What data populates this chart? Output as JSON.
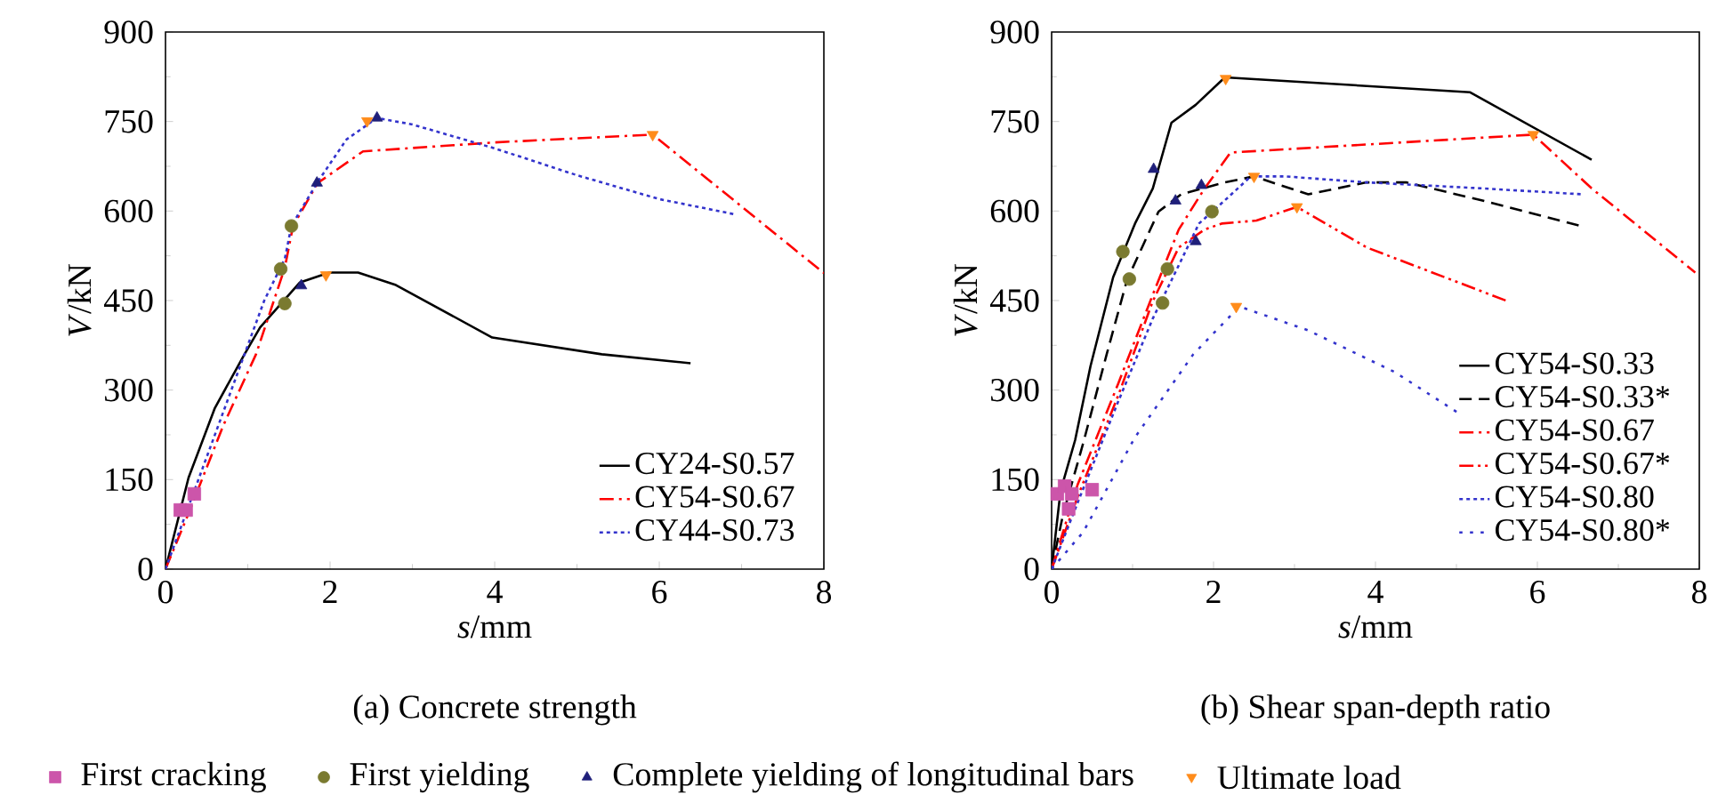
{
  "chart_data": [
    {
      "type": "line",
      "title": "(a) Concrete strength",
      "xlabel": "*s*/mm",
      "ylabel": "*V*/kN",
      "xlim": [
        0,
        8
      ],
      "ylim": [
        0,
        900
      ],
      "xticks": [
        0,
        2,
        4,
        6,
        8
      ],
      "yticks": [
        0,
        150,
        300,
        450,
        600,
        750,
        900
      ],
      "legend": "bottom right",
      "series": [
        {
          "name": "CY24-S0.57",
          "color": "#000000",
          "line_style": "solid",
          "x": [
            0,
            0.28,
            0.6,
            0.96,
            1.15,
            1.63,
            1.99,
            2.34,
            2.8,
            3.97,
            5.3,
            6.38
          ],
          "values": [
            0,
            153,
            270,
            360,
            405,
            480,
            497,
            497,
            476,
            388,
            360,
            345
          ]
        },
        {
          "name": "CY54-S0.67",
          "color": "#ff0000",
          "line_style": "dashdot",
          "x": [
            0,
            0.3,
            0.7,
            1.1,
            1.45,
            1.55,
            1.85,
            2.4,
            4,
            5.92,
            8
          ],
          "values": [
            0,
            100,
            240,
            360,
            505,
            575,
            647,
            700,
            715,
            728,
            496
          ]
        },
        {
          "name": "CY44-S0.73",
          "color": "#3333cc",
          "line_style": "dotted",
          "x": [
            0,
            0.4,
            0.8,
            1.2,
            1.45,
            1.53,
            1.84,
            2.2,
            2.57,
            3,
            4,
            5,
            6,
            6.9
          ],
          "values": [
            0,
            150,
            300,
            450,
            520,
            575,
            647,
            720,
            756,
            745,
            705,
            660,
            620,
            595
          ]
        },
        {
          "name": "First cracking",
          "type": "scatter",
          "marker": "square",
          "color": "#cc55aa",
          "x": [
            0.18,
            0.25,
            0.35
          ],
          "values": [
            99,
            99,
            126
          ]
        },
        {
          "name": "First yielding",
          "type": "scatter",
          "marker": "circle",
          "color": "#7a7a30",
          "x": [
            1.4,
            1.45,
            1.53
          ],
          "values": [
            503,
            445,
            575
          ]
        },
        {
          "name": "Complete yielding of  longitudinal bars",
          "type": "scatter",
          "marker": "triangle",
          "color": "#1f1f7a",
          "x": [
            1.65,
            1.84,
            2.57
          ],
          "values": [
            475,
            647,
            756
          ]
        },
        {
          "name": "Ultimate load",
          "type": "scatter",
          "marker": "triangle down",
          "color": "#ff8c1a",
          "x": [
            1.95,
            2.45,
            5.92
          ],
          "values": [
            493,
            751,
            728
          ]
        }
      ]
    },
    {
      "type": "line",
      "title": "(b) Shear span-depth ratio",
      "xlabel": "*s*/mm",
      "ylabel": "*V*/kN",
      "xlim": [
        0,
        8
      ],
      "ylim": [
        0,
        900
      ],
      "xticks": [
        0,
        2,
        4,
        6,
        8
      ],
      "yticks": [
        0,
        150,
        300,
        450,
        600,
        750,
        900
      ],
      "legend": "bottom right",
      "series": [
        {
          "name": "CY54-S0.33",
          "color": "#000000",
          "line_style": "solid",
          "x": [
            0,
            0.11,
            0.29,
            0.48,
            0.76,
            1.03,
            1.25,
            1.48,
            1.78,
            2.14,
            5.17,
            6.67
          ],
          "values": [
            0,
            131,
            216,
            340,
            489,
            579,
            638,
            748,
            778,
            824,
            799,
            686
          ]
        },
        {
          "name": "CY54-S0.33*",
          "color": "#000000",
          "line_style": "dashed",
          "x": [
            0,
            0.14,
            0.39,
            0.68,
            0.93,
            1.32,
            1.6,
            2.14,
            2.5,
            3.17,
            3.89,
            4.38,
            5.31,
            6.56
          ],
          "values": [
            0,
            91,
            211,
            360,
            484,
            599,
            628,
            648,
            658,
            628,
            648,
            648,
            618,
            574
          ]
        },
        {
          "name": "CY54-S0.67",
          "color": "#ff0000",
          "line_style": "dashdot",
          "x": [
            0,
            0.32,
            0.82,
            1.25,
            1.57,
            1.89,
            2.21,
            5.95,
            6.67,
            7.95
          ],
          "values": [
            0,
            141,
            310,
            460,
            569,
            638,
            698,
            728,
            638,
            497
          ]
        },
        {
          "name": "CY54-S0.67*",
          "color": "#ff0000",
          "line_style": "dashdotdot",
          "x": [
            0,
            0.32,
            0.82,
            1.25,
            1.57,
            1.89,
            2.1,
            2.53,
            3.03,
            3.89,
            5.63
          ],
          "values": [
            0,
            121,
            290,
            449,
            539,
            569,
            579,
            584,
            607,
            539,
            449
          ]
        },
        {
          "name": "CY54-S0.80",
          "color": "#3333cc",
          "line_style": "dotted",
          "x": [
            0,
            0.32,
            0.82,
            1.25,
            1.57,
            1.82,
            2.14,
            2.46,
            2.89,
            3.89,
            5.31,
            6.56
          ],
          "values": [
            0,
            111,
            280,
            420,
            509,
            579,
            618,
            658,
            658,
            648,
            638,
            628
          ]
        },
        {
          "name": "CY54-S0.80*",
          "color": "#3333cc",
          "line_style": "loosely dotted",
          "x": [
            0,
            0.39,
            1.03,
            1.75,
            2.32,
            3.17,
            4.24,
            5.03
          ],
          "values": [
            0,
            62,
            221,
            360,
            440,
            400,
            330,
            261
          ]
        },
        {
          "type": "scatter",
          "marker": "square",
          "color": "#cc55aa",
          "x": [
            0.07,
            0.16,
            0.25,
            0.21,
            0.5
          ],
          "values": [
            126,
            139,
            126,
            101,
            133
          ]
        },
        {
          "type": "scatter",
          "marker": "circle",
          "color": "#7a7a30",
          "x": [
            0.88,
            0.96,
            1.43,
            1.37,
            1.98
          ],
          "values": [
            532,
            486,
            503,
            446,
            599
          ]
        },
        {
          "type": "scatter",
          "marker": "triangle",
          "color": "#1f1f7a",
          "x": [
            1.26,
            1.53,
            1.85,
            1.78
          ],
          "values": [
            670,
            617,
            643,
            549
          ]
        },
        {
          "type": "scatter",
          "marker": "triangle down",
          "color": "#ff8c1a",
          "x": [
            2.15,
            2.5,
            3.03,
            2.28,
            5.95
          ],
          "values": [
            822,
            658,
            607,
            440,
            728
          ]
        }
      ]
    }
  ]
}
